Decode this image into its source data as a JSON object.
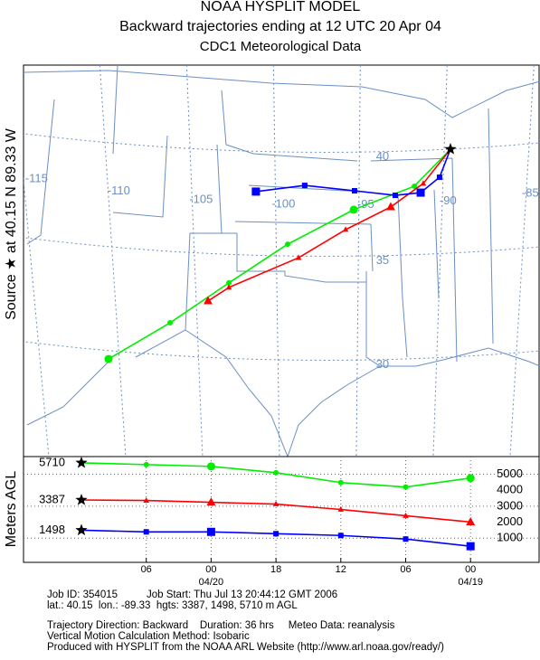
{
  "header": {
    "title": "NOAA HYSPLIT MODEL",
    "subtitle": "Backward trajectories ending at 12 UTC 20 Apr 04",
    "data_source": "CDC1 Meteorological Data"
  },
  "map": {
    "source_label": "Source ★ at  40.15 N  89.33 W",
    "lat_labels": [
      40,
      35,
      30
    ],
    "lon_labels": [
      -115,
      -110,
      -105,
      -100,
      -95,
      -90,
      -85
    ],
    "trajectories": [
      {
        "color": "#00ee00",
        "marker": "circle",
        "lon": [
          -89.33,
          -91.55,
          -95.27,
          -99.33,
          -102.94,
          -106.55,
          -110.33
        ],
        "lat": [
          40.15,
          38.37,
          37.24,
          35.58,
          33.72,
          31.8,
          30.06
        ]
      },
      {
        "color": "#ff0000",
        "marker": "triangle",
        "lon": [
          -89.33,
          -91.0,
          -93.0,
          -95.77,
          -98.66,
          -102.94,
          -104.22
        ],
        "lat": [
          40.15,
          38.5,
          37.37,
          36.28,
          34.93,
          33.5,
          32.85
        ]
      },
      {
        "color": "#0000ff",
        "marker": "square",
        "lon": [
          -89.33,
          -90.0,
          -91.16,
          -92.72,
          -95.22,
          -98.28,
          -101.28
        ],
        "lat": [
          40.15,
          38.8,
          38.06,
          37.93,
          38.15,
          38.41,
          38.11
        ]
      }
    ]
  },
  "chart_data": {
    "type": "line",
    "y_label": "Meters AGL",
    "categories": [
      null,
      "06",
      "00",
      "18",
      "12",
      "06",
      "00"
    ],
    "date_labels": [
      null,
      null,
      "04/20",
      null,
      null,
      null,
      "04/19"
    ],
    "ylim": [
      -400,
      6100
    ],
    "yticks": [
      1000,
      2000,
      3000,
      4000,
      5000
    ],
    "grid": true,
    "series": [
      {
        "color": "#00ee00",
        "marker": "circle",
        "values": [
          5710,
          5598,
          5486,
          5093,
          4476,
          4196,
          4757
        ]
      },
      {
        "color": "#ff0000",
        "marker": "triangle",
        "values": [
          3387,
          3355,
          3243,
          3131,
          2794,
          2402,
          2009
        ]
      },
      {
        "color": "#0000ff",
        "marker": "square",
        "values": [
          1498,
          1393,
          1393,
          1280,
          1168,
          944,
          495
        ]
      }
    ]
  },
  "footer": {
    "lines": [
      "Job ID: 354015          Job Start: Thu Jul 13 20:44:12 GMT 2006",
      "lat.: 40.15  lon.: -89.33  hgts: 3387, 1498, 5710 m AGL",
      "Trajectory Direction: Backward    Duration: 36 hrs     Meteo Data: reanalysis",
      "Vertical Motion Calculation Method: Isobaric",
      "Produced with HYSPLIT from the NOAA ARL Website (http://www.arl.noaa.gov/ready/)"
    ]
  }
}
